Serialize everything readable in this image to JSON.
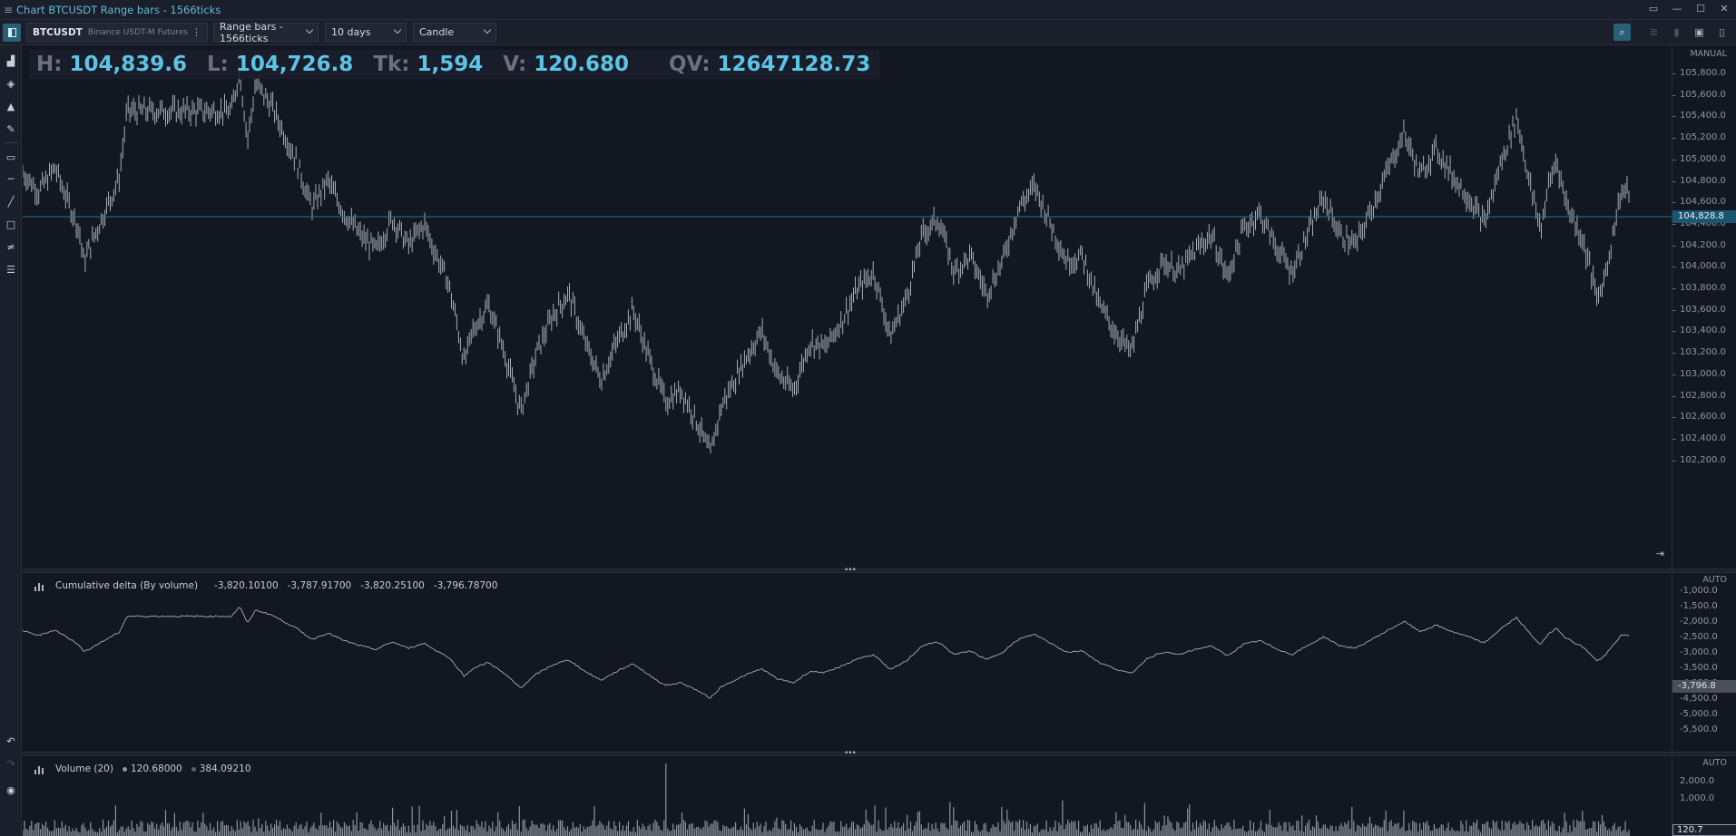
{
  "window": {
    "title": "Chart BTCUSDT Range bars - 1566ticks",
    "controls": [
      "▭",
      "—",
      "☐",
      "✕"
    ]
  },
  "toolbar": {
    "symbol": "BTCUSDT",
    "exchange": "Binance USDT-M Futures",
    "bar_type": "Range bars - 1566ticks",
    "period": "10 days",
    "chart_style": "Candle"
  },
  "stats": {
    "high_key": "H:",
    "high": "104,839.6",
    "low_key": "L:",
    "low": "104,726.8",
    "ticks_key": "Tk:",
    "ticks": "1,594",
    "volume_key": "V:",
    "volume": "120.680",
    "quote_volume_key": "QV:",
    "quote_volume": "12647128.73"
  },
  "price_axis": {
    "mode": "MANUAL",
    "labels": [
      "105,800.0",
      "105,600.0",
      "105,400.0",
      "105,200.0",
      "105,000.0",
      "104,800.0",
      "104,600.0",
      "104,400.0",
      "104,200.0",
      "104,000.0",
      "103,800.0",
      "103,600.0",
      "103,400.0",
      "103,200.0",
      "103,000.0",
      "102,800.0",
      "102,600.0",
      "102,400.0",
      "102,200.0"
    ],
    "current": "104,828.8"
  },
  "delta_pane": {
    "title": "Cumulative delta (By volume)",
    "values": [
      "-3,820.10100",
      "-3,787.91700",
      "-3,820.25100",
      "-3,796.78700"
    ],
    "axis_mode": "AUTO",
    "axis_labels": [
      "-1,000.0",
      "-1,500.0",
      "-2,000.0",
      "-2,500.0",
      "-3,000.0",
      "-3,500.0",
      "-4,000.0",
      "-4,500.0",
      "-5,000.0",
      "-5,500.0"
    ],
    "current": "-3,796.8"
  },
  "volume_pane": {
    "title": "Volume (20)",
    "value_1": "120.68000",
    "value_2": "384.09210",
    "axis_mode": "AUTO",
    "axis_labels": [
      "2,000.0",
      "1,000.0"
    ],
    "current": "120.7"
  },
  "sidebar_icons": [
    "chart-icon",
    "layers-icon",
    "alert-icon",
    "drawing-icon",
    "ruler-icon",
    "horizontal-line-icon",
    "trend-line-icon",
    "rectangle-icon",
    "fibonacci-icon",
    "object-tree-icon",
    "undo-icon",
    "redo-icon",
    "eye-icon"
  ],
  "colors": {
    "background": "#131722",
    "bars": "#a7abb3",
    "accent": "#5cc5e6",
    "price_line": "#1b7a8f"
  },
  "price_series": [
    [
      0,
      104880
    ],
    [
      0.01,
      104700
    ],
    [
      0.02,
      104920
    ],
    [
      0.035,
      104350
    ],
    [
      0.038,
      104050
    ],
    [
      0.045,
      104300
    ],
    [
      0.055,
      104650
    ],
    [
      0.06,
      104820
    ],
    [
      0.065,
      105450
    ],
    [
      0.085,
      105450
    ],
    [
      0.13,
      105450
    ],
    [
      0.135,
      105830
    ],
    [
      0.14,
      105180
    ],
    [
      0.145,
      105700
    ],
    [
      0.155,
      105500
    ],
    [
      0.17,
      105000
    ],
    [
      0.18,
      104550
    ],
    [
      0.19,
      104800
    ],
    [
      0.2,
      104500
    ],
    [
      0.21,
      104300
    ],
    [
      0.22,
      104150
    ],
    [
      0.23,
      104450
    ],
    [
      0.24,
      104200
    ],
    [
      0.25,
      104400
    ],
    [
      0.255,
      104200
    ],
    [
      0.265,
      103850
    ],
    [
      0.27,
      103500
    ],
    [
      0.275,
      103100
    ],
    [
      0.28,
      103400
    ],
    [
      0.29,
      103650
    ],
    [
      0.3,
      103200
    ],
    [
      0.31,
      102650
    ],
    [
      0.32,
      103200
    ],
    [
      0.33,
      103550
    ],
    [
      0.34,
      103750
    ],
    [
      0.35,
      103300
    ],
    [
      0.36,
      102950
    ],
    [
      0.37,
      103300
    ],
    [
      0.38,
      103600
    ],
    [
      0.39,
      103150
    ],
    [
      0.4,
      102750
    ],
    [
      0.41,
      102850
    ],
    [
      0.42,
      102550
    ],
    [
      0.428,
      102250
    ],
    [
      0.435,
      102700
    ],
    [
      0.45,
      103150
    ],
    [
      0.46,
      103400
    ],
    [
      0.47,
      103000
    ],
    [
      0.48,
      102850
    ],
    [
      0.49,
      103300
    ],
    [
      0.5,
      103250
    ],
    [
      0.51,
      103500
    ],
    [
      0.52,
      103800
    ],
    [
      0.53,
      103950
    ],
    [
      0.54,
      103350
    ],
    [
      0.55,
      103700
    ],
    [
      0.56,
      104300
    ],
    [
      0.57,
      104450
    ],
    [
      0.58,
      103950
    ],
    [
      0.59,
      104100
    ],
    [
      0.6,
      103750
    ],
    [
      0.61,
      104050
    ],
    [
      0.62,
      104550
    ],
    [
      0.63,
      104750
    ],
    [
      0.64,
      104400
    ],
    [
      0.65,
      104050
    ],
    [
      0.66,
      104100
    ],
    [
      0.67,
      103650
    ],
    [
      0.68,
      103400
    ],
    [
      0.69,
      103200
    ],
    [
      0.7,
      103800
    ],
    [
      0.71,
      104050
    ],
    [
      0.72,
      103950
    ],
    [
      0.73,
      104150
    ],
    [
      0.74,
      104300
    ],
    [
      0.75,
      103900
    ],
    [
      0.76,
      104350
    ],
    [
      0.77,
      104500
    ],
    [
      0.78,
      104200
    ],
    [
      0.79,
      103950
    ],
    [
      0.8,
      104300
    ],
    [
      0.81,
      104650
    ],
    [
      0.82,
      104300
    ],
    [
      0.83,
      104200
    ],
    [
      0.84,
      104550
    ],
    [
      0.85,
      104900
    ],
    [
      0.86,
      105250
    ],
    [
      0.87,
      104850
    ],
    [
      0.88,
      105100
    ],
    [
      0.89,
      104850
    ],
    [
      0.9,
      104650
    ],
    [
      0.91,
      104400
    ],
    [
      0.92,
      104950
    ],
    [
      0.93,
      105400
    ],
    [
      0.94,
      104650
    ],
    [
      0.945,
      104350
    ],
    [
      0.95,
      104750
    ],
    [
      0.955,
      105000
    ],
    [
      0.96,
      104650
    ],
    [
      0.965,
      104450
    ],
    [
      0.97,
      104300
    ],
    [
      0.975,
      104050
    ],
    [
      0.98,
      103700
    ],
    [
      0.985,
      103900
    ],
    [
      0.99,
      104300
    ],
    [
      0.995,
      104700
    ]
  ]
}
